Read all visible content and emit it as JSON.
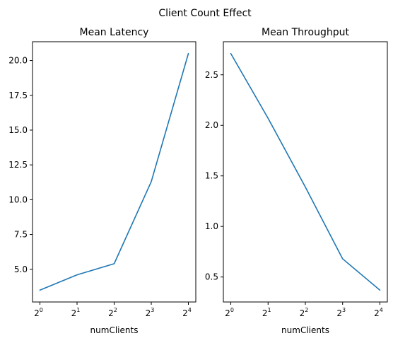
{
  "figure": {
    "title": "Client Count Effect"
  },
  "chart_data": [
    {
      "type": "line",
      "title": "Mean Latency",
      "xlabel": "numClients",
      "ylabel": "",
      "x_scale": "log2",
      "x": [
        1,
        2,
        4,
        8,
        16
      ],
      "x_tick_labels": [
        {
          "base": "2",
          "exp": "0"
        },
        {
          "base": "2",
          "exp": "1"
        },
        {
          "base": "2",
          "exp": "2"
        },
        {
          "base": "2",
          "exp": "3"
        },
        {
          "base": "2",
          "exp": "4"
        }
      ],
      "series": [
        {
          "values": [
            3.5,
            4.6,
            5.4,
            11.3,
            20.5
          ],
          "color": "#1f77b4"
        }
      ],
      "ylim": [
        2.65,
        21.35
      ],
      "yticks": [
        5.0,
        7.5,
        10.0,
        12.5,
        15.0,
        17.5,
        20.0
      ],
      "ytick_labels": [
        "5.0",
        "7.5",
        "10.0",
        "12.5",
        "15.0",
        "17.5",
        "20.0"
      ],
      "grid": false
    },
    {
      "type": "line",
      "title": "Mean Throughput",
      "xlabel": "numClients",
      "ylabel": "",
      "x_scale": "log2",
      "x": [
        1,
        2,
        4,
        8,
        16
      ],
      "x_tick_labels": [
        {
          "base": "2",
          "exp": "0"
        },
        {
          "base": "2",
          "exp": "1"
        },
        {
          "base": "2",
          "exp": "2"
        },
        {
          "base": "2",
          "exp": "3"
        },
        {
          "base": "2",
          "exp": "4"
        }
      ],
      "series": [
        {
          "values": [
            2.71,
            2.07,
            1.39,
            0.68,
            0.37
          ],
          "color": "#1f77b4"
        }
      ],
      "ylim": [
        0.253,
        2.827
      ],
      "yticks": [
        0.5,
        1.0,
        1.5,
        2.0,
        2.5
      ],
      "ytick_labels": [
        "0.5",
        "1.0",
        "1.5",
        "2.0",
        "2.5"
      ],
      "grid": false
    }
  ]
}
